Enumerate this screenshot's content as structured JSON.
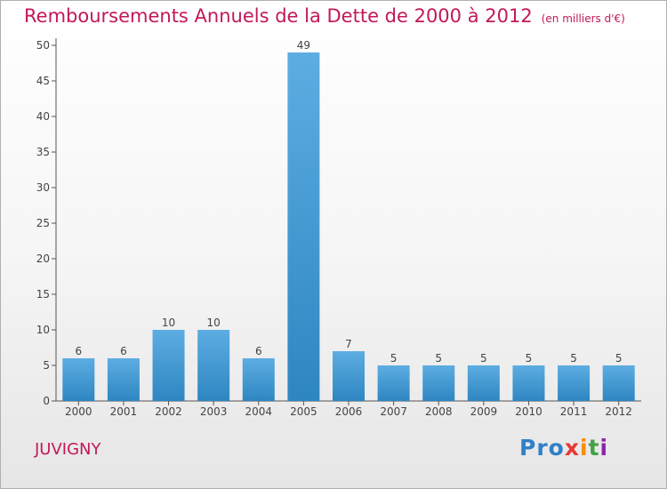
{
  "header": {
    "title": "Remboursements Annuels de la Dette de 2000 à 2012",
    "subtitle": "(en milliers d'€)"
  },
  "footer": {
    "town": "JUVIGNY",
    "logo": "Proxiti"
  },
  "colors": {
    "title": "#c2185b",
    "bar_top": "#5dade2",
    "bar_bottom": "#2e86c1",
    "axis": "#555555"
  },
  "chart_data": {
    "type": "bar",
    "title": "Remboursements Annuels de la Dette de 2000 à 2012",
    "subtitle": "(en milliers d'€)",
    "xlabel": "",
    "ylabel": "",
    "categories": [
      "2000",
      "2001",
      "2002",
      "2003",
      "2004",
      "2005",
      "2006",
      "2007",
      "2008",
      "2009",
      "2010",
      "2011",
      "2012"
    ],
    "values": [
      6,
      6,
      10,
      10,
      6,
      49,
      7,
      5,
      5,
      5,
      5,
      5,
      5
    ],
    "data_labels": [
      "6",
      "6",
      "10",
      "10",
      "6",
      "49",
      "7",
      "5",
      "5",
      "5",
      "5",
      "5",
      "5"
    ],
    "ylim": [
      0,
      50
    ],
    "yticks": [
      0,
      5,
      10,
      15,
      20,
      25,
      30,
      35,
      40,
      45,
      50
    ],
    "grid": false,
    "legend": "none"
  }
}
